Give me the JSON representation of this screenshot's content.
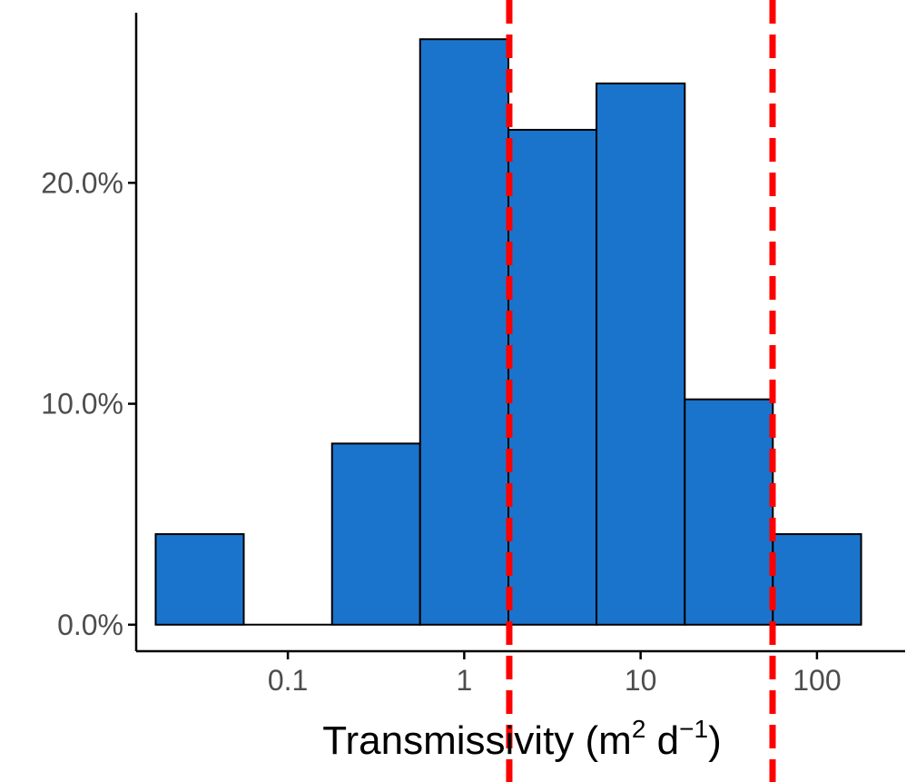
{
  "chart_data": {
    "type": "histogram",
    "x_scale": "log10",
    "xlabel": {
      "prefix": "Transmissivity (m",
      "sup1": "2",
      "middle": " d",
      "sup2": "−1",
      "suffix": ")"
    },
    "ylabel": "",
    "x_ticks": [
      {
        "value": 0.1,
        "label": "0.1"
      },
      {
        "value": 1,
        "label": "1"
      },
      {
        "value": 10,
        "label": "10"
      },
      {
        "value": 100,
        "label": "100"
      }
    ],
    "y_ticks": [
      {
        "value": 0,
        "label": "0.0%"
      },
      {
        "value": 10,
        "label": "10.0%"
      },
      {
        "value": 20,
        "label": "20.0%"
      }
    ],
    "xlim": [
      0.0138,
      316
    ],
    "ylim": [
      -1.2,
      27.7
    ],
    "bins": [
      {
        "x0": 0.0178,
        "x1": 0.0562,
        "percent": 4.1
      },
      {
        "x0": 0.0562,
        "x1": 0.178,
        "percent": 0.0
      },
      {
        "x0": 0.178,
        "x1": 0.562,
        "percent": 8.2
      },
      {
        "x0": 0.562,
        "x1": 1.78,
        "percent": 26.5
      },
      {
        "x0": 1.78,
        "x1": 5.62,
        "percent": 22.4
      },
      {
        "x0": 5.62,
        "x1": 17.8,
        "percent": 24.5
      },
      {
        "x0": 17.8,
        "x1": 56.2,
        "percent": 10.2
      },
      {
        "x0": 56.2,
        "x1": 178,
        "percent": 4.1
      }
    ],
    "reference_lines": [
      1.8,
      56
    ],
    "bar_color": "#1a74cc",
    "bar_outline": "#000000",
    "reference_line_color": "#ff0000",
    "grid": false
  }
}
